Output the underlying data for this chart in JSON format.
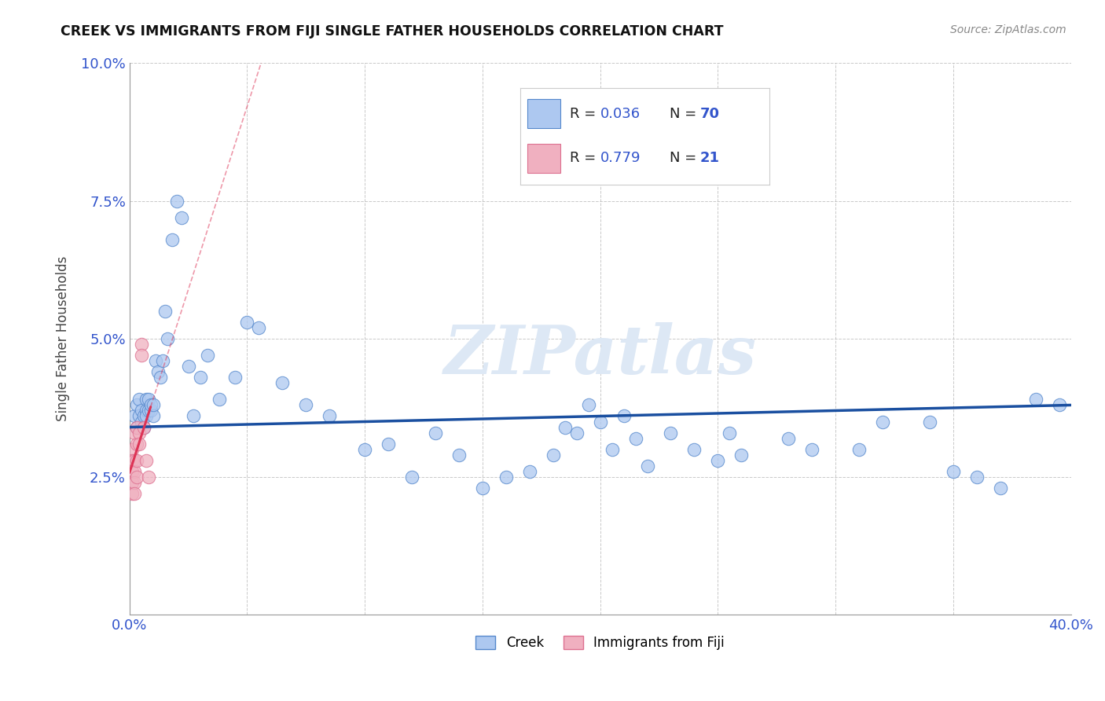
{
  "title": "CREEK VS IMMIGRANTS FROM FIJI SINGLE FATHER HOUSEHOLDS CORRELATION CHART",
  "source": "Source: ZipAtlas.com",
  "ylabel": "Single Father Households",
  "xlim": [
    0.0,
    0.4
  ],
  "ylim": [
    0.0,
    0.1
  ],
  "xticks": [
    0.0,
    0.05,
    0.1,
    0.15,
    0.2,
    0.25,
    0.3,
    0.35,
    0.4
  ],
  "yticks": [
    0.0,
    0.025,
    0.05,
    0.075,
    0.1
  ],
  "creek_R": "0.036",
  "creek_N": "70",
  "fiji_R": "0.779",
  "fiji_N": "21",
  "creek_color": "#adc8f0",
  "creek_edge_color": "#5588cc",
  "fiji_color": "#f0b0c0",
  "fiji_edge_color": "#dd7090",
  "trend_creek_color": "#1a4fa0",
  "trend_fiji_color": "#dd3355",
  "watermark_color": "#dde8f5",
  "background_color": "#ffffff",
  "grid_color": "#bbbbbb",
  "label_color": "#3355cc",
  "creek_x": [
    0.002,
    0.003,
    0.003,
    0.004,
    0.004,
    0.005,
    0.005,
    0.006,
    0.006,
    0.007,
    0.007,
    0.007,
    0.008,
    0.008,
    0.009,
    0.009,
    0.01,
    0.01,
    0.011,
    0.012,
    0.013,
    0.014,
    0.015,
    0.016,
    0.018,
    0.02,
    0.022,
    0.025,
    0.027,
    0.03,
    0.033,
    0.038,
    0.045,
    0.05,
    0.055,
    0.065,
    0.075,
    0.085,
    0.1,
    0.11,
    0.12,
    0.13,
    0.14,
    0.15,
    0.16,
    0.17,
    0.18,
    0.185,
    0.19,
    0.195,
    0.2,
    0.205,
    0.21,
    0.215,
    0.22,
    0.23,
    0.24,
    0.25,
    0.255,
    0.26,
    0.28,
    0.29,
    0.31,
    0.32,
    0.34,
    0.35,
    0.36,
    0.37,
    0.385,
    0.395
  ],
  "creek_y": [
    0.036,
    0.034,
    0.038,
    0.036,
    0.039,
    0.035,
    0.037,
    0.034,
    0.036,
    0.037,
    0.039,
    0.036,
    0.037,
    0.039,
    0.037,
    0.038,
    0.036,
    0.038,
    0.046,
    0.044,
    0.043,
    0.046,
    0.055,
    0.05,
    0.068,
    0.075,
    0.072,
    0.045,
    0.036,
    0.043,
    0.047,
    0.039,
    0.043,
    0.053,
    0.052,
    0.042,
    0.038,
    0.036,
    0.03,
    0.031,
    0.025,
    0.033,
    0.029,
    0.023,
    0.025,
    0.026,
    0.029,
    0.034,
    0.033,
    0.038,
    0.035,
    0.03,
    0.036,
    0.032,
    0.027,
    0.033,
    0.03,
    0.028,
    0.033,
    0.029,
    0.032,
    0.03,
    0.03,
    0.035,
    0.035,
    0.026,
    0.025,
    0.023,
    0.039,
    0.038
  ],
  "fiji_x": [
    0.001,
    0.001,
    0.001,
    0.001,
    0.001,
    0.002,
    0.002,
    0.002,
    0.002,
    0.002,
    0.003,
    0.003,
    0.003,
    0.003,
    0.004,
    0.004,
    0.005,
    0.005,
    0.006,
    0.007,
    0.008
  ],
  "fiji_y": [
    0.03,
    0.028,
    0.026,
    0.024,
    0.022,
    0.033,
    0.028,
    0.026,
    0.024,
    0.022,
    0.034,
    0.031,
    0.028,
    0.025,
    0.033,
    0.031,
    0.049,
    0.047,
    0.034,
    0.028,
    0.025
  ]
}
